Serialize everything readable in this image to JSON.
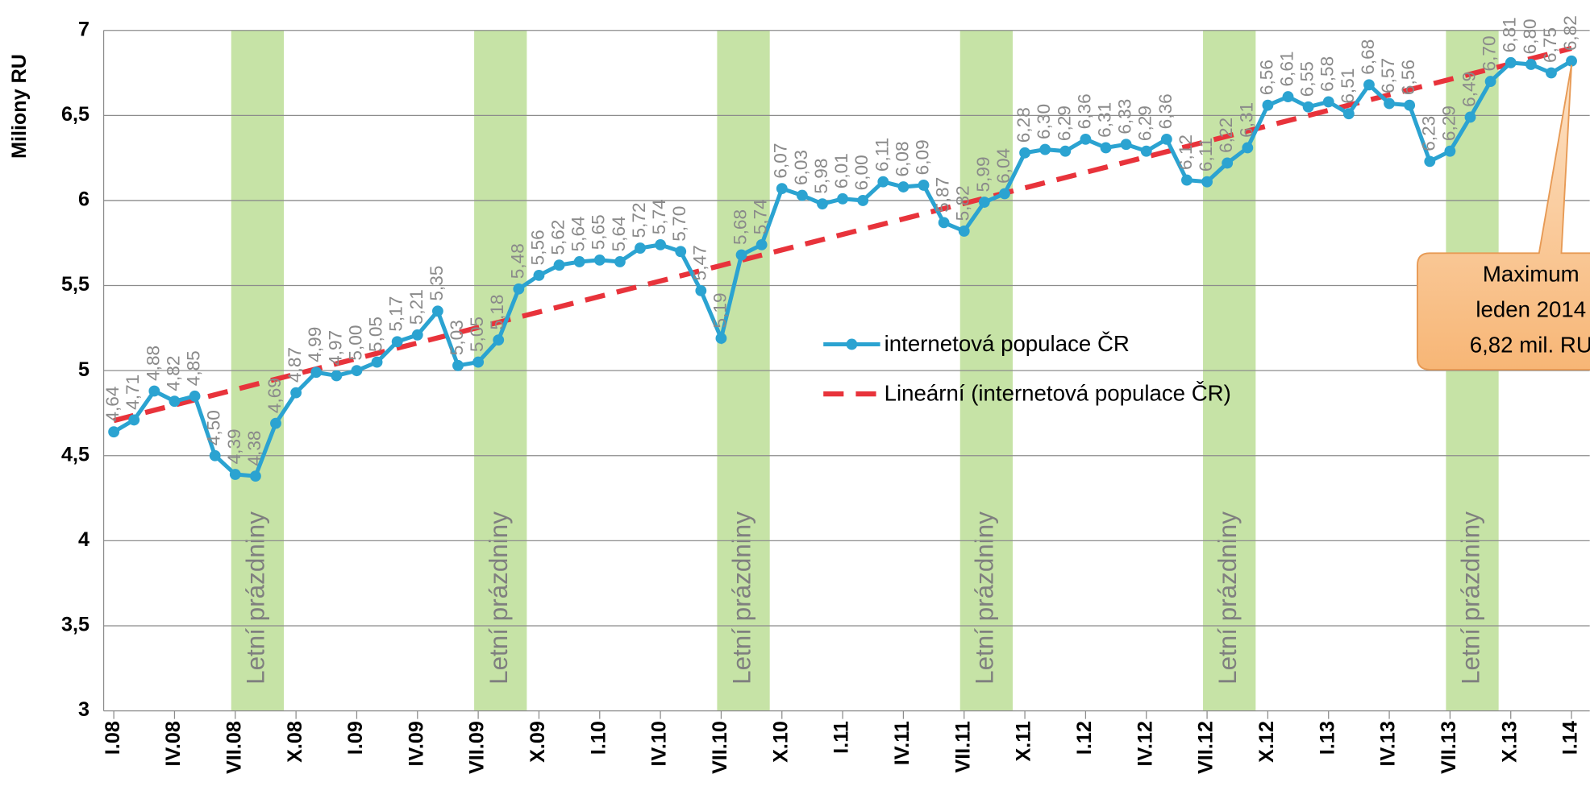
{
  "chart_data": {
    "type": "line",
    "y_label": "Miliony RU",
    "categories": [
      "I.08",
      null,
      null,
      "IV.08",
      null,
      null,
      "VII.08",
      null,
      null,
      "X.08",
      null,
      null,
      "I.09",
      null,
      null,
      "IV.09",
      null,
      null,
      "VII.09",
      null,
      null,
      "X.09",
      null,
      null,
      "I.10",
      null,
      null,
      "IV.10",
      null,
      null,
      "VII.10",
      null,
      null,
      "X.10",
      null,
      null,
      "I.11",
      null,
      null,
      "IV.11",
      null,
      null,
      "VII.11",
      null,
      null,
      "X.11",
      null,
      null,
      "I.12",
      null,
      null,
      "IV.12",
      null,
      null,
      "VII.12",
      null,
      null,
      "X.12",
      null,
      null,
      "I.13",
      null,
      null,
      "IV.13",
      null,
      null,
      "VII.13",
      null,
      null,
      "X.13",
      null,
      null,
      "I.14"
    ],
    "series": [
      {
        "name": "internetová populace ČR",
        "color": "#2ba3d1",
        "values": [
          4.64,
          4.71,
          4.88,
          4.82,
          4.85,
          4.5,
          4.39,
          4.38,
          4.69,
          4.87,
          4.99,
          4.97,
          5.0,
          5.05,
          5.17,
          5.21,
          5.35,
          5.03,
          5.05,
          5.18,
          5.48,
          5.56,
          5.62,
          5.64,
          5.65,
          5.64,
          5.72,
          5.74,
          5.7,
          5.47,
          5.19,
          5.68,
          5.74,
          6.07,
          6.03,
          5.98,
          6.01,
          6.0,
          6.11,
          6.08,
          6.09,
          5.87,
          5.82,
          5.99,
          6.04,
          6.28,
          6.3,
          6.29,
          6.36,
          6.31,
          6.33,
          6.29,
          6.36,
          6.12,
          6.11,
          6.22,
          6.31,
          6.56,
          6.61,
          6.55,
          6.58,
          6.51,
          6.68,
          6.57,
          6.56,
          6.23,
          6.29,
          6.49,
          6.7,
          6.81,
          6.8,
          6.75,
          6.82
        ],
        "value_labels": [
          "4,64",
          "4,71",
          "4,88",
          "4,82",
          "4,85",
          "4,50",
          "4,39",
          "4,38",
          "4,69",
          "4,87",
          "4,99",
          "4,97",
          "5,00",
          "5,05",
          "5,17",
          "5,21",
          "5,35",
          "5,03",
          "5,05",
          "5,18",
          "5,48",
          "5,56",
          "5,62",
          "5,64",
          "5,65",
          "5,64",
          "5,72",
          "5,74",
          "5,70",
          "5,47",
          "5,19",
          "5,68",
          "5,74",
          "6,07",
          "6,03",
          "5,98",
          "6,01",
          "6,00",
          "6,11",
          "6,08",
          "6,09",
          "5,87",
          "5,82",
          "5,99",
          "6,04",
          "6,28",
          "6,30",
          "6,29",
          "6,36",
          "6,31",
          "6,33",
          "6,29",
          "6,36",
          "6,12",
          "6,11",
          "6,22",
          "6,31",
          "6,56",
          "6,61",
          "6,55",
          "6,58",
          "6,51",
          "6,68",
          "6,57",
          "6,56",
          "6,23",
          "6,29",
          "6,49",
          "6,70",
          "6,81",
          "6,80",
          "6,75",
          "6,82"
        ]
      },
      {
        "name": "Lineární (internetová populace ČR)",
        "color": "#e8333b",
        "trendline_of": 0
      }
    ],
    "ylim": [
      3,
      7
    ],
    "yticks": [
      3,
      {
        "value": 3.5,
        "label": "3,5"
      },
      4,
      {
        "value": 4.5,
        "label": "4,5"
      },
      5,
      {
        "value": 5.5,
        "label": "5,5"
      },
      6,
      {
        "value": 6.5,
        "label": "6,5"
      },
      7
    ],
    "grid": true,
    "bands": {
      "label": "Letní prázdniny",
      "color": "#c6e3a6",
      "from": [
        6,
        18,
        30,
        42,
        54,
        66
      ]
    },
    "annotation": {
      "lines": [
        "Maximum",
        "leden 2014",
        "6,82 mil. RU"
      ],
      "index": 72
    }
  }
}
